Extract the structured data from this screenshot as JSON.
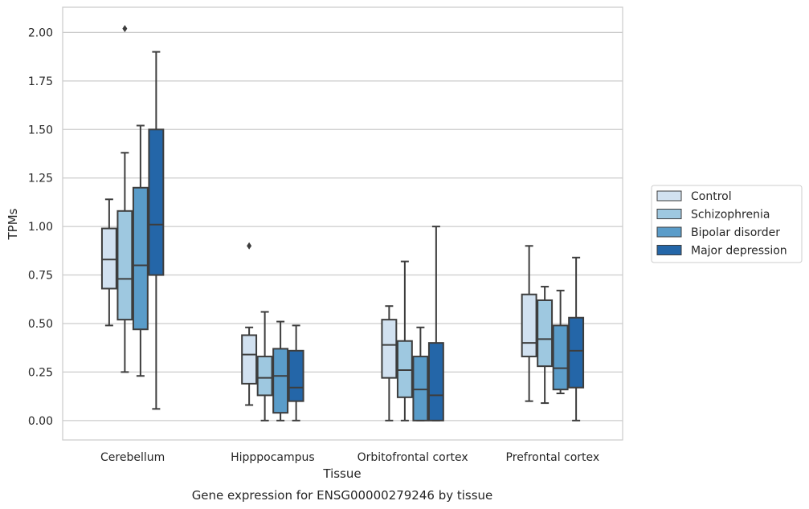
{
  "chart_data": {
    "type": "box",
    "caption": "Gene expression for ENSG00000279246 by tissue",
    "xlabel": "Tissue",
    "ylabel": "TPMs",
    "ylim": [
      -0.1,
      2.13
    ],
    "yticks": [
      "0.00",
      "0.25",
      "0.50",
      "0.75",
      "1.00",
      "1.25",
      "1.50",
      "1.75",
      "2.00"
    ],
    "grid": "horizontal",
    "legend_position": "right",
    "categories": [
      "Cerebellum",
      "Hipppocampus",
      "Orbitofrontal cortex",
      "Prefrontal cortex"
    ],
    "series": [
      {
        "name": "Control",
        "color": "#d1e1f0",
        "boxes": [
          {
            "whisker_low": 0.49,
            "q1": 0.68,
            "median": 0.83,
            "q3": 0.99,
            "whisker_high": 1.14,
            "outliers": []
          },
          {
            "whisker_low": 0.08,
            "q1": 0.19,
            "median": 0.34,
            "q3": 0.44,
            "whisker_high": 0.48,
            "outliers": [
              0.9
            ]
          },
          {
            "whisker_low": 0.0,
            "q1": 0.22,
            "median": 0.39,
            "q3": 0.52,
            "whisker_high": 0.59,
            "outliers": []
          },
          {
            "whisker_low": 0.1,
            "q1": 0.33,
            "median": 0.4,
            "q3": 0.65,
            "whisker_high": 0.9,
            "outliers": []
          }
        ]
      },
      {
        "name": "Schizophrenia",
        "color": "#9ec8e0",
        "boxes": [
          {
            "whisker_low": 0.25,
            "q1": 0.52,
            "median": 0.73,
            "q3": 1.08,
            "whisker_high": 1.38,
            "outliers": [
              2.02
            ]
          },
          {
            "whisker_low": 0.0,
            "q1": 0.13,
            "median": 0.22,
            "q3": 0.33,
            "whisker_high": 0.56,
            "outliers": []
          },
          {
            "whisker_low": 0.0,
            "q1": 0.12,
            "median": 0.26,
            "q3": 0.41,
            "whisker_high": 0.82,
            "outliers": []
          },
          {
            "whisker_low": 0.09,
            "q1": 0.28,
            "median": 0.42,
            "q3": 0.62,
            "whisker_high": 0.69,
            "outliers": []
          }
        ]
      },
      {
        "name": "Bipolar disorder",
        "color": "#5a9cc9",
        "boxes": [
          {
            "whisker_low": 0.23,
            "q1": 0.47,
            "median": 0.8,
            "q3": 1.2,
            "whisker_high": 1.52,
            "outliers": []
          },
          {
            "whisker_low": 0.0,
            "q1": 0.04,
            "median": 0.23,
            "q3": 0.37,
            "whisker_high": 0.51,
            "outliers": []
          },
          {
            "whisker_low": 0.0,
            "q1": 0.0,
            "median": 0.16,
            "q3": 0.33,
            "whisker_high": 0.48,
            "outliers": []
          },
          {
            "whisker_low": 0.14,
            "q1": 0.16,
            "median": 0.27,
            "q3": 0.49,
            "whisker_high": 0.67,
            "outliers": []
          }
        ]
      },
      {
        "name": "Major depression",
        "color": "#2466a8",
        "boxes": [
          {
            "whisker_low": 0.06,
            "q1": 0.75,
            "median": 1.01,
            "q3": 1.5,
            "whisker_high": 1.9,
            "outliers": []
          },
          {
            "whisker_low": 0.0,
            "q1": 0.1,
            "median": 0.17,
            "q3": 0.36,
            "whisker_high": 0.49,
            "outliers": []
          },
          {
            "whisker_low": 0.0,
            "q1": 0.0,
            "median": 0.13,
            "q3": 0.4,
            "whisker_high": 1.0,
            "outliers": []
          },
          {
            "whisker_low": 0.0,
            "q1": 0.17,
            "median": 0.36,
            "q3": 0.53,
            "whisker_high": 0.84,
            "outliers": []
          }
        ]
      }
    ]
  }
}
